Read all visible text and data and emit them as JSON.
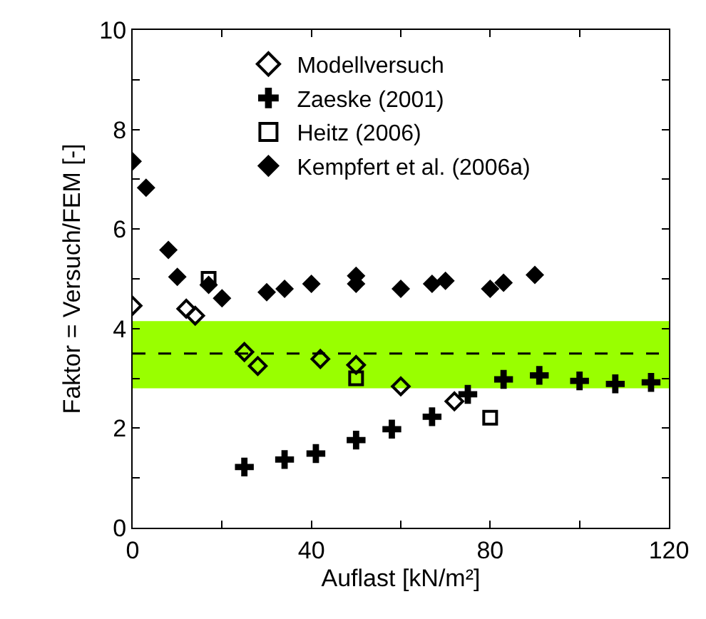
{
  "chart_data": {
    "type": "scatter",
    "xlabel": "Auflast [kN/m²]",
    "ylabel": "Faktor = Versuch/FEM [-]",
    "xlim": [
      0,
      120
    ],
    "ylim": [
      0,
      10
    ],
    "xticks": [
      0,
      {
        "value": 20,
        "label": null
      },
      40,
      {
        "value": 60,
        "label": null
      },
      80,
      {
        "value": 100,
        "label": null
      },
      120
    ],
    "yticks": [
      0,
      {
        "value": 1,
        "label": null
      },
      2,
      {
        "value": 3,
        "label": null
      },
      4,
      {
        "value": 5,
        "label": null
      },
      6,
      {
        "value": 7,
        "label": null
      },
      8,
      {
        "value": 9,
        "label": null
      },
      10
    ],
    "grid": false,
    "legend": "top",
    "line_style": "none",
    "bands": [
      {
        "axis": "y",
        "from": 2.8,
        "to": 4.15,
        "color": "#99ff00"
      }
    ],
    "ref_lines": [
      {
        "axis": "y",
        "value": 3.5,
        "color": "#000000",
        "line_style": "dashed"
      }
    ],
    "series": [
      {
        "name": "Modellversuch",
        "color": "#000000",
        "marker": "diamond-open",
        "x": [
          0,
          12,
          14,
          25,
          28,
          42,
          50,
          60,
          72
        ],
        "values": [
          4.46,
          4.4,
          4.26,
          3.53,
          3.25,
          3.39,
          3.27,
          2.84,
          2.54
        ]
      },
      {
        "name": "Zaeske (2001)",
        "color": "#000000",
        "marker": "cross",
        "x": [
          25,
          34,
          41,
          50,
          58,
          67,
          75,
          83,
          91,
          100,
          108,
          116
        ],
        "values": [
          1.22,
          1.37,
          1.49,
          1.76,
          1.98,
          2.23,
          2.68,
          2.98,
          3.06,
          2.95,
          2.89,
          2.92
        ]
      },
      {
        "name": "Heitz (2006)",
        "color": "#000000",
        "marker": "square-open",
        "x": [
          17,
          50,
          80
        ],
        "values": [
          5.0,
          3.0,
          2.21
        ]
      },
      {
        "name": "Kempfert et al. (2006a)",
        "color": "#000000",
        "marker": "diamond",
        "x": [
          0,
          3,
          8,
          10,
          17,
          20,
          30,
          34,
          40,
          50,
          50,
          60,
          67,
          70,
          80,
          83,
          90
        ],
        "values": [
          7.36,
          6.83,
          5.58,
          5.04,
          4.88,
          4.61,
          4.73,
          4.8,
          4.9,
          5.06,
          4.9,
          4.8,
          4.9,
          4.96,
          4.8,
          4.92,
          5.08
        ]
      }
    ]
  }
}
